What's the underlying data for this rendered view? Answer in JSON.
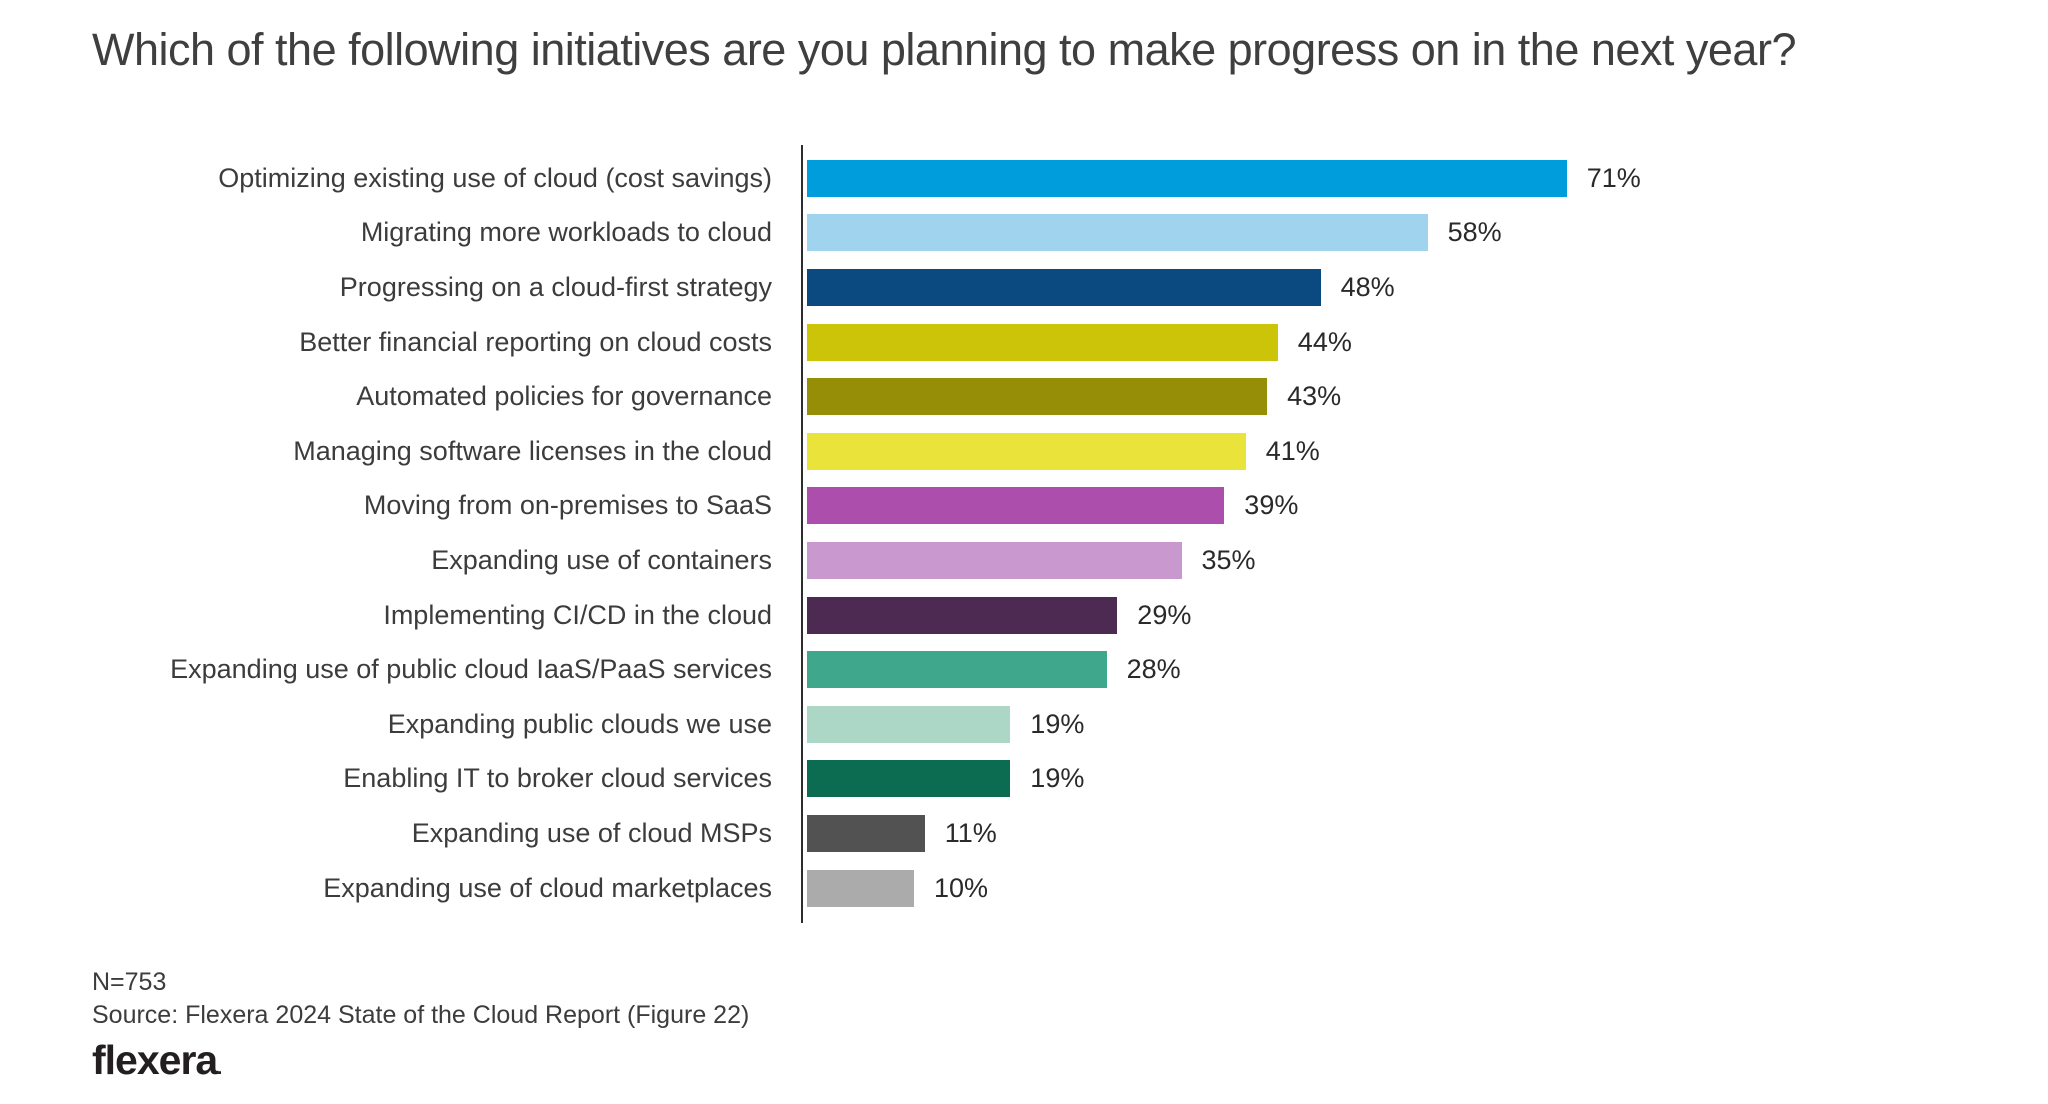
{
  "header": {
    "title": "Which of the following initiatives are you planning to make progress on in the next year?"
  },
  "chart_data": {
    "type": "bar",
    "orientation": "horizontal",
    "title": "Which of the following initiatives are you planning to make progress on in the next year?",
    "categories": [
      "Optimizing existing use of cloud (cost savings)",
      "Migrating more workloads to cloud",
      "Progressing on a cloud-first strategy",
      "Better financial reporting on cloud costs",
      "Automated policies for governance",
      "Managing software licenses in the cloud",
      "Moving from on-premises to SaaS",
      "Expanding use of containers",
      "Implementing CI/CD in the cloud",
      "Expanding use of public cloud IaaS/PaaS services",
      "Expanding public clouds we use",
      "Enabling IT to broker cloud services",
      "Expanding use of cloud MSPs",
      "Expanding use of cloud marketplaces"
    ],
    "values": [
      71,
      58,
      48,
      44,
      43,
      41,
      39,
      35,
      29,
      28,
      19,
      19,
      11,
      10
    ],
    "value_suffix": "%",
    "colors": [
      "#009DDC",
      "#A0D4EE",
      "#0B4A80",
      "#CCC408",
      "#958E06",
      "#E9E33A",
      "#AC4FAC",
      "#C998CF",
      "#4C2A52",
      "#3FA78C",
      "#ACD7C7",
      "#0C6C52",
      "#525252",
      "#ABABAB"
    ],
    "xlim": [
      0,
      100
    ],
    "grid": false,
    "legend": false,
    "axis_line_color": "#2d2d2d",
    "data_labels": true
  },
  "footer": {
    "n_label": "N=753",
    "source": "Source: Flexera 2024 State of the Cloud Report (Figure 22)",
    "logo_text": "flexera",
    "logo_dot": "."
  }
}
